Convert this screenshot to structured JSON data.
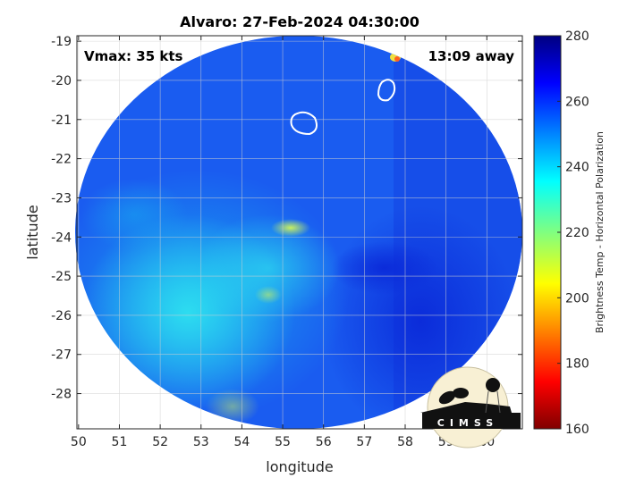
{
  "title": "Alvaro: 27-Feb-2024 04:30:00",
  "annotations": {
    "vmax": "Vmax: 35 kts",
    "time_away": "13:09 away"
  },
  "logo": {
    "text": "CIMSS"
  },
  "chart_data": {
    "type": "heatmap",
    "title": "Alvaro: 27-Feb-2024 04:30:00",
    "xlabel": "longitude",
    "ylabel": "latitude",
    "xlim": [
      49.96,
      60.87
    ],
    "ylim": [
      -28.9,
      -18.86
    ],
    "xticks": [
      "50",
      "51",
      "52",
      "53",
      "54",
      "55",
      "56",
      "57",
      "58",
      "59",
      "60"
    ],
    "yticks": [
      "-19",
      "-20",
      "-21",
      "-22",
      "-23",
      "-24",
      "-25",
      "-26",
      "-27",
      "-28"
    ],
    "grid": true,
    "colorbar": {
      "label": "Brightness Temp - Horizontal Polarization",
      "range": [
        160,
        280
      ],
      "ticks": [
        "280",
        "260",
        "240",
        "220",
        "200",
        "180",
        "160"
      ],
      "colormap": "jet"
    },
    "colors": {
      "dominant": "#1a5af0",
      "warm_region": "#27c8f0",
      "contour": "#ffffff"
    }
  }
}
